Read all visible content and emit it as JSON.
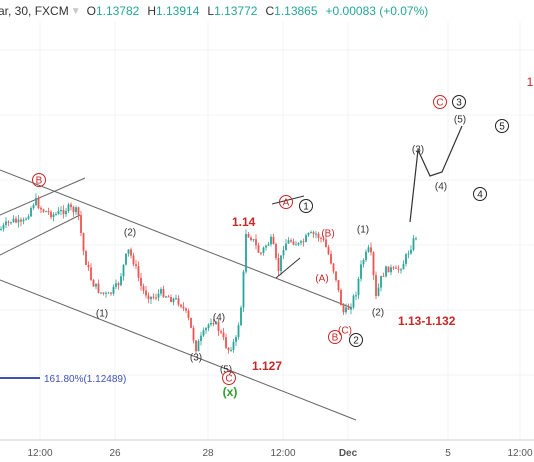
{
  "header": {
    "symbol": "ar, 30, FXCM",
    "open_label": "O",
    "open": "1.13782",
    "high_label": "H",
    "high": "1.13914",
    "low_label": "L",
    "low": "1.13772",
    "close_label": "C",
    "close": "1.13865",
    "change": "+0.00083 (+0.07%)"
  },
  "chart_data": {
    "type": "candlestick",
    "grid": true,
    "x_ticks": [
      "12:00",
      "26",
      "28",
      "12:00",
      "Dec",
      "5",
      "12:00"
    ],
    "y_range": [
      1.1235,
      1.1425
    ],
    "price_annotations": [
      "1.14",
      "1.127",
      "1.13-1.132"
    ],
    "fib_label": "161.80%(1.12489)",
    "wave_labels": [
      "B",
      "(2)",
      "(1)",
      "(3)",
      "(4)",
      "(5)",
      "C",
      "(x)",
      "A",
      "1",
      "(B)",
      "(A)",
      "(C)",
      "B",
      "2",
      "(1)",
      "(2)",
      "(3)",
      "(4)",
      "(5)",
      "C",
      "3",
      "4",
      "5",
      "1"
    ],
    "colors": {
      "up": "#26a69a",
      "down": "#ef5350",
      "label_red": "#c62828",
      "label_green": "#2e9e2e",
      "fib": "#3f51b5"
    }
  }
}
